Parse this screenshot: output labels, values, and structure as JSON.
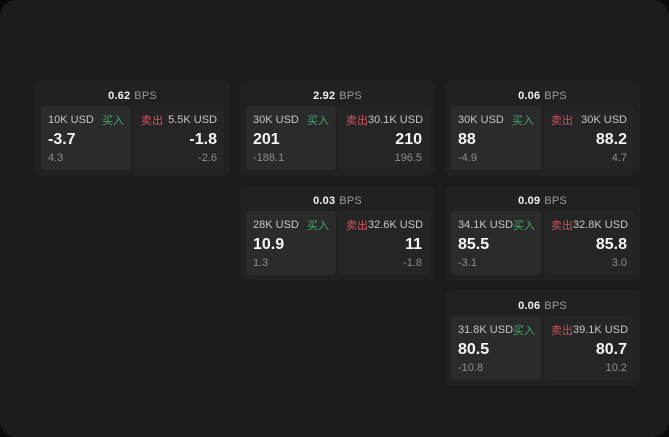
{
  "labels": {
    "buy": "买入",
    "sell": "卖出",
    "bps": "BPS"
  },
  "colors": {
    "buy_green": "#43a86c",
    "sell_red": "#d05260"
  },
  "cards": [
    {
      "grid": {
        "row": 0,
        "col": 0
      },
      "bps": "0.62",
      "buy": {
        "amount": "10K USD",
        "price": "-3.7",
        "delta": "4.3"
      },
      "sell": {
        "amount": "5.5K USD",
        "price": "-1.8",
        "delta": "-2.6"
      }
    },
    {
      "grid": {
        "row": 0,
        "col": 1
      },
      "bps": "2.92",
      "buy": {
        "amount": "30K USD",
        "price": "201",
        "delta": "-188.1"
      },
      "sell": {
        "amount": "30.1K USD",
        "price": "210",
        "delta": "196.5"
      }
    },
    {
      "grid": {
        "row": 0,
        "col": 2
      },
      "bps": "0.06",
      "buy": {
        "amount": "30K USD",
        "price": "88",
        "delta": "-4.9"
      },
      "sell": {
        "amount": "30K USD",
        "price": "88.2",
        "delta": "4.7"
      }
    },
    {
      "grid": {
        "row": 1,
        "col": 1
      },
      "bps": "0.03",
      "buy": {
        "amount": "28K USD",
        "price": "10.9",
        "delta": "1.3"
      },
      "sell": {
        "amount": "32.6K USD",
        "price": "11",
        "delta": "-1.8"
      }
    },
    {
      "grid": {
        "row": 1,
        "col": 2
      },
      "bps": "0.09",
      "buy": {
        "amount": "34.1K USD",
        "price": "85.5",
        "delta": "-3.1"
      },
      "sell": {
        "amount": "32.8K USD",
        "price": "85.8",
        "delta": "3.0"
      }
    },
    {
      "grid": {
        "row": 2,
        "col": 2
      },
      "bps": "0.06",
      "buy": {
        "amount": "31.8K USD",
        "price": "80.5",
        "delta": "-10.8"
      },
      "sell": {
        "amount": "39.1K USD",
        "price": "80.7",
        "delta": "10.2"
      }
    }
  ]
}
